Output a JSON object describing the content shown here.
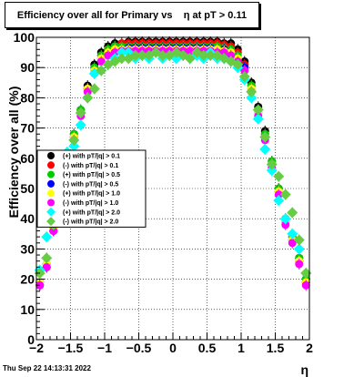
{
  "title": "Efficiency over all for Primary vs    η at pT > 0.11",
  "timestamp": "Thu Sep 22 14:13:31 2022",
  "chart_data": {
    "type": "scatter",
    "title": "Efficiency over all for Primary vs    η at pT > 0.11",
    "xlabel": "η",
    "ylabel": "Efficiency over all (%)",
    "xlim": [
      -2,
      2
    ],
    "ylim": [
      0,
      100
    ],
    "x_ticks": [
      -2,
      -1.5,
      -1,
      -0.5,
      0,
      0.5,
      1,
      1.5,
      2
    ],
    "x_tick_labels": [
      "−2",
      "−1.5",
      "−1",
      "−0.5",
      "0",
      "0.5",
      "1",
      "1.5",
      "2"
    ],
    "y_ticks": [
      0,
      10,
      20,
      30,
      40,
      50,
      60,
      70,
      80,
      90,
      100
    ],
    "y_tick_labels": [
      "0",
      "10",
      "20",
      "30",
      "40",
      "50",
      "60",
      "70",
      "80",
      "90",
      "100"
    ],
    "grid": true,
    "legend_position": "middle-left",
    "x": [
      -1.95,
      -1.85,
      -1.75,
      -1.65,
      -1.55,
      -1.45,
      -1.35,
      -1.25,
      -1.15,
      -1.05,
      -0.95,
      -0.85,
      -0.75,
      -0.65,
      -0.55,
      -0.45,
      -0.35,
      -0.25,
      -0.15,
      -0.05,
      0.05,
      0.15,
      0.25,
      0.35,
      0.45,
      0.55,
      0.65,
      0.75,
      0.85,
      0.95,
      1.05,
      1.15,
      1.25,
      1.35,
      1.45,
      1.55,
      1.65,
      1.75,
      1.85,
      1.95
    ],
    "series": [
      {
        "name": "(+) with pT/|q| > 0.1",
        "color": "#000000",
        "marker": "circle",
        "values": [
          19,
          25,
          37,
          49,
          59,
          68,
          76,
          84,
          91,
          95,
          97,
          98,
          98,
          98.5,
          98.5,
          98.5,
          98.5,
          98.5,
          98.5,
          98.5,
          98.5,
          98.5,
          98.5,
          98.5,
          98.5,
          98.5,
          98.5,
          98,
          98,
          96,
          92,
          85,
          77,
          69,
          59,
          50,
          40,
          34,
          27,
          20
        ]
      },
      {
        "name": "(-) with pT/|q| > 0.1",
        "color": "#ff0000",
        "marker": "circle",
        "values": [
          18,
          24,
          36,
          48,
          58,
          67,
          75,
          83,
          90,
          94,
          96,
          97,
          98,
          98,
          98,
          98,
          98,
          98,
          98,
          98,
          98,
          98,
          98,
          98,
          98,
          98,
          98,
          97.5,
          97,
          95,
          91,
          84,
          76,
          68,
          58,
          49,
          39,
          33,
          26,
          19
        ]
      },
      {
        "name": "(+) with pT/|q| > 0.5",
        "color": "#00cc00",
        "marker": "circle",
        "values": [
          19,
          25,
          37,
          48,
          59,
          68,
          76,
          83,
          90,
          94,
          96,
          97,
          97,
          97,
          97,
          97,
          97,
          97,
          97,
          97,
          97,
          97,
          97,
          97,
          97,
          97,
          97,
          96.5,
          96,
          94,
          90,
          84,
          76,
          68,
          59,
          50,
          40,
          34,
          27,
          20
        ]
      },
      {
        "name": "(-) with pT/|q| > 0.5",
        "color": "#0000ff",
        "marker": "circle",
        "values": [
          18,
          24,
          36,
          48,
          58,
          67,
          75,
          83,
          89,
          93,
          95,
          96,
          96,
          96.5,
          96.5,
          96.5,
          96.5,
          96.5,
          96.5,
          96.5,
          96.5,
          96.5,
          96.5,
          96.5,
          96.5,
          96.5,
          96,
          96,
          95,
          93,
          90,
          83,
          75,
          67,
          58,
          49,
          39,
          33,
          26,
          19
        ]
      },
      {
        "name": "(+) with pT/|q| > 1.0",
        "color": "#ffff00",
        "marker": "circle",
        "values": [
          19,
          25,
          37,
          48,
          58,
          67,
          75,
          83,
          89,
          93,
          95,
          96,
          96,
          96,
          96,
          96,
          96,
          96,
          96,
          96,
          96,
          96,
          96,
          96,
          96,
          96,
          96,
          95.5,
          95,
          93,
          89,
          83,
          75,
          67,
          58,
          49,
          39,
          33,
          26,
          19
        ]
      },
      {
        "name": "(-) with pT/|q| > 1.0",
        "color": "#ff00ff",
        "marker": "circle",
        "values": [
          18,
          24,
          36,
          47,
          57,
          66,
          74,
          82,
          88,
          92,
          94,
          95,
          95.5,
          95.5,
          95.5,
          95.5,
          95.5,
          95.5,
          95.5,
          95.5,
          95.5,
          95.5,
          95.5,
          95.5,
          95.5,
          95.5,
          95,
          95,
          94,
          92,
          89,
          82,
          74,
          66,
          57,
          48,
          38,
          32,
          25,
          18
        ]
      },
      {
        "name": "(+) with pT/|q| > 2.0",
        "color": "#00ffff",
        "marker": "diamond",
        "values": [
          23,
          34,
          47,
          53,
          62,
          64,
          71,
          80,
          88,
          89,
          91,
          93,
          95,
          95,
          93,
          94,
          93,
          95,
          93,
          94,
          93,
          94,
          93,
          94,
          93,
          95,
          93,
          93,
          92,
          90,
          86,
          80,
          73,
          63,
          56,
          46,
          40,
          35,
          30,
          22
        ]
      },
      {
        "name": "(-) with pT/|q| > 2.0",
        "color": "#66cc44",
        "marker": "diamond",
        "values": [
          22,
          27,
          38,
          45,
          58,
          66,
          75,
          80,
          83,
          89,
          91,
          92,
          93,
          93,
          94,
          94,
          94,
          95,
          94,
          94,
          95,
          94,
          93,
          95,
          94,
          94,
          94,
          93,
          92,
          91,
          87,
          82,
          76,
          67,
          58,
          54,
          48,
          42,
          33,
          22
        ]
      }
    ]
  }
}
